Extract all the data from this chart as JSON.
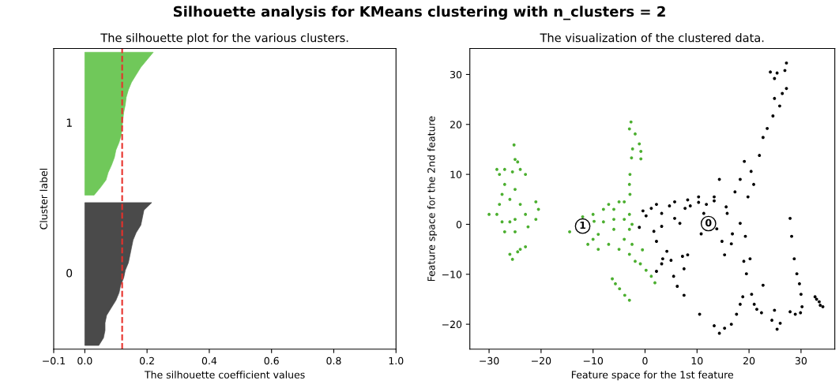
{
  "chart_data": [
    {
      "type": "area",
      "orientation": "horizontal",
      "title": "The silhouette plot for the various clusters.",
      "xlabel": "The silhouette coefficient values",
      "ylabel": "Cluster label",
      "tick_labels": "x",
      "annotations": [
        "Silhouette analysis for KMeans clustering with n_clusters = 2"
      ],
      "categories": [
        null,
        null,
        null,
        null,
        null,
        null,
        null,
        null,
        null,
        null,
        null,
        null,
        null,
        null,
        null,
        null,
        null,
        null,
        null,
        null,
        null,
        null,
        null,
        null,
        null,
        null,
        null,
        null,
        null,
        null,
        null,
        null,
        null,
        null,
        null,
        null,
        null,
        null,
        null,
        null
      ],
      "series": [
        {
          "name": "1",
          "color": "#70c85a",
          "values": [
            0.22,
            0.2,
            0.18,
            0.165,
            0.15,
            0.14,
            0.133,
            0.13,
            0.125,
            0.122,
            0.12,
            0.117,
            0.11,
            0.1,
            0.095,
            0.086,
            0.075,
            0.068,
            0.05,
            0.03,
            null,
            null,
            null,
            null,
            null,
            null,
            null,
            null,
            null,
            null,
            null,
            null,
            null,
            null,
            null,
            null,
            null,
            null,
            null,
            null
          ]
        },
        {
          "name": "0",
          "color": "#4a4a4a",
          "values": [
            null,
            null,
            null,
            null,
            null,
            null,
            null,
            null,
            null,
            null,
            null,
            null,
            null,
            null,
            null,
            null,
            null,
            null,
            null,
            null,
            0.215,
            0.19,
            0.185,
            0.18,
            0.165,
            0.155,
            0.15,
            0.145,
            0.14,
            0.13,
            0.125,
            0.115,
            0.11,
            0.1,
            0.085,
            0.07,
            0.065,
            0.065,
            0.06,
            0.045
          ]
        }
      ],
      "xlim": [
        -0.1,
        1.0
      ],
      "xticks": [
        {
          "value": -0.1,
          "label": "−0.1"
        },
        {
          "value": 0,
          "label": "0.0"
        },
        {
          "value": 0.2,
          "label": "0.2"
        },
        {
          "value": 0.4,
          "label": "0.4"
        },
        {
          "value": 0.6,
          "label": "0.6"
        },
        {
          "value": 0.8,
          "label": "0.8"
        },
        {
          "value": 1.0,
          "label": "1.0"
        }
      ],
      "ref_lines": [
        {
          "axis": "x",
          "value": 0.12,
          "color": "#e8302a",
          "line_style": "dashed"
        }
      ]
    },
    {
      "type": "scatter",
      "title": "The visualization of the clustered data.",
      "xlabel": "Feature space for the 1st feature",
      "ylabel": "Feature space for the 2nd feature",
      "marker": "circle",
      "xlim": [
        -33.7,
        36.5
      ],
      "ylim": [
        -25,
        35.2
      ],
      "xticks": [
        {
          "value": -30,
          "label": "−30"
        },
        {
          "value": -20,
          "label": "−20"
        },
        {
          "value": -10,
          "label": "−10"
        },
        0,
        10,
        20,
        30
      ],
      "yticks": [
        {
          "value": -20,
          "label": "−20"
        },
        {
          "value": -10,
          "label": "−10"
        },
        0,
        10,
        20,
        30
      ],
      "annotations": [
        {
          "text": "1",
          "x": -12,
          "y": -0.35
        },
        {
          "text": "0",
          "x": 12.2,
          "y": 0.15
        }
      ],
      "series": [
        {
          "color": "#4caf30",
          "x": [
            -30,
            -28.5,
            -27.5,
            -26,
            -25,
            -28,
            -27.5,
            -27,
            -28,
            -28.5,
            -27,
            -25.5,
            -25,
            -24.5,
            -25.2,
            -24,
            -23,
            -25,
            -26,
            -24,
            -23,
            -27,
            -25,
            -22.5,
            -21,
            -20.5,
            -21,
            -26,
            -25.5,
            -24.5,
            -23,
            -24,
            -14.5,
            -12,
            -9.8,
            -10,
            -10,
            -9,
            -8,
            -8,
            -7,
            -6,
            -5,
            -4,
            -6,
            -7,
            -5,
            -4,
            -3,
            -3,
            -2.5,
            -2.5,
            -3,
            -11,
            -9,
            -6,
            -4,
            -2.7,
            -3,
            -2.4,
            -0.8,
            -1.1,
            -2.6,
            -2.9,
            -3,
            -2.9,
            -1.9,
            -0.8,
            -0.5,
            -0.9,
            0.2,
            1.2,
            1.9,
            -1.9,
            -6.3,
            -4.9,
            -3.9,
            -3,
            -5.7
          ],
          "values": [
            2,
            2,
            0.5,
            0.5,
            1,
            4,
            6,
            8,
            10,
            11,
            11,
            10.5,
            13,
            12.5,
            15.9,
            11,
            10,
            7,
            5,
            4,
            2,
            -1.5,
            -1.5,
            -0.5,
            4.5,
            3,
            1,
            -6,
            -7,
            -5.5,
            -4.5,
            -5,
            -1.5,
            1.5,
            0.6,
            2,
            -3,
            -5,
            0.5,
            3,
            4,
            3,
            4.5,
            4.5,
            -1,
            -4,
            -5,
            -3,
            -1,
            2,
            0,
            -4,
            -6,
            -4,
            -2,
            1,
            1,
            20.5,
            19.1,
            15.1,
            14.6,
            16.1,
            13.3,
            10,
            8,
            6,
            18.1,
            13.1,
            -5.1,
            -7.9,
            -9.2,
            -10.4,
            -11.7,
            -7.4,
            -10.9,
            -12.9,
            -14.2,
            -15.2,
            -11.9
          ]
        },
        {
          "color": "#000000",
          "x": [
            -1.1,
            0.2,
            1.2,
            1.7,
            3.2,
            4.7,
            5.7,
            6.7,
            7.7,
            8.7,
            10.3,
            8.2,
            3.2,
            2.2,
            4.2,
            5,
            3.2,
            2.2,
            3.4,
            5.5,
            6.2,
            7.5,
            7.2,
            8.2,
            7.5,
            -0.4,
            2.2,
            5.7,
            10.3,
            11.8,
            13.3,
            14.3,
            15.6,
            17.3,
            18.3,
            19.1,
            20.4,
            20.9,
            19.8,
            22,
            22.7,
            23.5,
            24.6,
            25.9,
            26.4,
            24.9,
            24.1,
            25.4,
            26.9,
            27.2,
            24.9,
            27.2,
            10.8,
            11.3,
            13.3,
            13.8,
            14.8,
            15.8,
            16.8,
            18.3,
            19.3,
            16.6,
            15.3,
            19,
            19.5,
            20.5,
            21,
            21.5,
            20.2,
            22.4,
            22.7,
            24.9,
            24.4,
            25.4,
            26,
            10.5,
            13.3,
            14.3,
            15.3,
            16.6,
            17.6,
            18.3,
            18.8,
            27.9,
            28.2,
            28.7,
            29.2,
            29.7,
            30,
            30.2,
            27.9,
            28.9,
            29.9,
            32.7,
            33.5,
            34.2,
            33.7,
            33
          ],
          "values": [
            -0.6,
            1.7,
            3.2,
            -1.4,
            2.2,
            3.7,
            1.2,
            0.2,
            3.2,
            3.7,
            4.4,
            4.9,
            -0.4,
            -3.4,
            -5.4,
            -7.2,
            -7.9,
            -9.4,
            -6.9,
            -10.4,
            -12.4,
            -14.2,
            -6.4,
            -6.1,
            -8.9,
            2.7,
            4,
            4.5,
            5.5,
            4,
            5.5,
            9,
            3.5,
            6.5,
            9,
            12.6,
            10.6,
            8,
            5.5,
            13.8,
            17.4,
            19.2,
            21.7,
            23.7,
            26.2,
            25.2,
            30.5,
            30.3,
            30.8,
            32.3,
            29.2,
            27.2,
            -1.9,
            2.2,
            4.7,
            -0.9,
            -3.4,
            2.2,
            -1.9,
            0.2,
            -2.4,
            -3.9,
            -6.1,
            -7.4,
            -9.9,
            -14,
            -16,
            -17,
            -6.9,
            -17.7,
            -12.2,
            -17.2,
            -19.2,
            -21,
            -19.8,
            -18,
            -20.3,
            -21.8,
            -20.8,
            -20,
            -18,
            -16,
            -14.5,
            1.2,
            -2.4,
            -6.9,
            -9.9,
            -11.9,
            -14,
            -16.5,
            -17.5,
            -18,
            -17.7,
            -14.5,
            -15.5,
            -16.5,
            -16.2,
            -15
          ]
        }
      ]
    }
  ]
}
